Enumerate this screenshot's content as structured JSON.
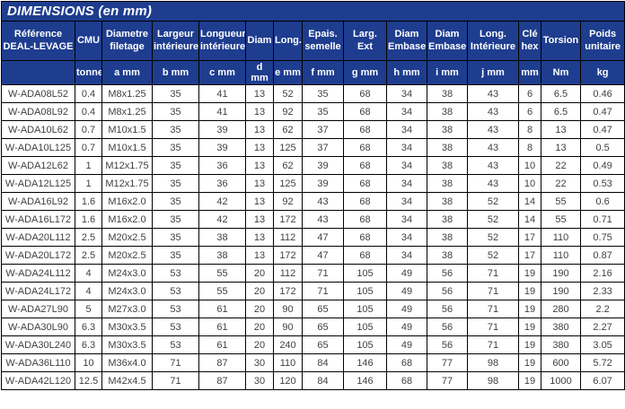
{
  "table": {
    "title": "DIMENSIONS (en mm)",
    "columns": [
      {
        "label": "Référence DEAL-LEVAGE",
        "sub": ""
      },
      {
        "label": "CMU",
        "sub": "tonne"
      },
      {
        "label": "Diametre filetage",
        "sub": "a mm"
      },
      {
        "label": "Largeur intérieure",
        "sub": "b mm"
      },
      {
        "label": "Longueur intérieure",
        "sub": "c mm"
      },
      {
        "label": "Diam",
        "sub": "d mm"
      },
      {
        "label": "Long.",
        "sub": "e mm"
      },
      {
        "label": "Epais. semelle",
        "sub": "f mm"
      },
      {
        "label": "Larg. Ext",
        "sub": "g mm"
      },
      {
        "label": "Diam Embase",
        "sub": "h mm"
      },
      {
        "label": "Diam Embase",
        "sub": "i mm"
      },
      {
        "label": "Long. Intérieure",
        "sub": "j mm"
      },
      {
        "label": "Clé hex",
        "sub": "mm"
      },
      {
        "label": "Torsion",
        "sub": "Nm"
      },
      {
        "label": "Poids unitaire",
        "sub": "kg"
      }
    ],
    "rows": [
      [
        "W-ADA08L52",
        "0.4",
        "M8x1.25",
        "35",
        "41",
        "13",
        "52",
        "35",
        "68",
        "34",
        "38",
        "43",
        "6",
        "6.5",
        "0.46"
      ],
      [
        "W-ADA08L92",
        "0.4",
        "M8x1.25",
        "35",
        "41",
        "13",
        "92",
        "35",
        "68",
        "34",
        "38",
        "43",
        "6",
        "6.5",
        "0.47"
      ],
      [
        "W-ADA10L62",
        "0.7",
        "M10x1.5",
        "35",
        "39",
        "13",
        "62",
        "37",
        "68",
        "34",
        "38",
        "43",
        "8",
        "13",
        "0.47"
      ],
      [
        "W-ADA10L125",
        "0.7",
        "M10x1.5",
        "35",
        "39",
        "13",
        "125",
        "37",
        "68",
        "34",
        "38",
        "43",
        "8",
        "13",
        "0.5"
      ],
      [
        "W-ADA12L62",
        "1",
        "M12x1.75",
        "35",
        "36",
        "13",
        "62",
        "39",
        "68",
        "34",
        "38",
        "43",
        "10",
        "22",
        "0.49"
      ],
      [
        "W-ADA12L125",
        "1",
        "M12x1.75",
        "35",
        "36",
        "13",
        "125",
        "39",
        "68",
        "34",
        "38",
        "43",
        "10",
        "22",
        "0.53"
      ],
      [
        "W-ADA16L92",
        "1.6",
        "M16x2.0",
        "35",
        "42",
        "13",
        "92",
        "43",
        "68",
        "34",
        "38",
        "52",
        "14",
        "55",
        "0.6"
      ],
      [
        "W-ADA16L172",
        "1.6",
        "M16x2.0",
        "35",
        "42",
        "13",
        "172",
        "43",
        "68",
        "34",
        "38",
        "52",
        "14",
        "55",
        "0.71"
      ],
      [
        "W-ADA20L112",
        "2.5",
        "M20x2.5",
        "35",
        "38",
        "13",
        "112",
        "47",
        "68",
        "34",
        "38",
        "52",
        "17",
        "110",
        "0.75"
      ],
      [
        "W-ADA20L172",
        "2.5",
        "M20x2.5",
        "35",
        "38",
        "13",
        "172",
        "47",
        "68",
        "34",
        "38",
        "52",
        "17",
        "110",
        "0.87"
      ],
      [
        "W-ADA24L112",
        "4",
        "M24x3.0",
        "53",
        "55",
        "20",
        "112",
        "71",
        "105",
        "49",
        "56",
        "71",
        "19",
        "190",
        "2.16"
      ],
      [
        "W-ADA24L172",
        "4",
        "M24x3.0",
        "53",
        "55",
        "20",
        "172",
        "71",
        "105",
        "49",
        "56",
        "71",
        "19",
        "190",
        "2.33"
      ],
      [
        "W-ADA27L90",
        "5",
        "M27x3.0",
        "53",
        "61",
        "20",
        "90",
        "65",
        "105",
        "49",
        "56",
        "71",
        "19",
        "280",
        "2.2"
      ],
      [
        "W-ADA30L90",
        "6.3",
        "M30x3.5",
        "53",
        "61",
        "20",
        "90",
        "65",
        "105",
        "49",
        "56",
        "71",
        "19",
        "380",
        "2.27"
      ],
      [
        "W-ADA30L240",
        "6.3",
        "M30x3.5",
        "53",
        "61",
        "20",
        "240",
        "65",
        "105",
        "49",
        "56",
        "71",
        "19",
        "380",
        "3.05"
      ],
      [
        "W-ADA36L110",
        "10",
        "M36x4.0",
        "71",
        "87",
        "30",
        "110",
        "84",
        "146",
        "68",
        "77",
        "98",
        "19",
        "600",
        "5.72"
      ],
      [
        "W-ADA42L120",
        "12.5",
        "M42x4.5",
        "71",
        "87",
        "30",
        "120",
        "84",
        "146",
        "68",
        "77",
        "98",
        "19",
        "1000",
        "6.07"
      ]
    ]
  },
  "colors": {
    "header_bg": "#1e3d8f",
    "header_text": "#ffffff",
    "body_text": "#3f3f3f",
    "border": "#000000",
    "row_bg": "#ffffff"
  }
}
